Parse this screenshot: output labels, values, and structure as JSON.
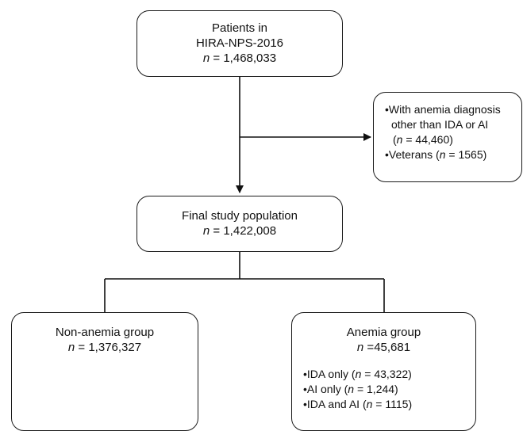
{
  "box_patients": {
    "line1": "Patients in",
    "line2": "HIRA-NPS-2016",
    "n_label": "n",
    "n_value": " = 1,468,033"
  },
  "box_excluded": {
    "item1_line1": "•With anemia diagnosis",
    "item1_line2": "other than IDA or AI",
    "item1_line3_open": "(",
    "item1_n_label": "n",
    "item1_line3_rest": " = 44,460)",
    "item2_prefix": "•Veterans (",
    "item2_n_label": "n",
    "item2_rest": " = 1565)"
  },
  "box_final": {
    "line1": "Final study population",
    "n_label": "n",
    "n_value": " = 1,422,008"
  },
  "box_nonanemia": {
    "line1": "Non-anemia group",
    "n_label": "n",
    "n_value": " = 1,376,327"
  },
  "box_anemia": {
    "line1": "Anemia group",
    "n_label": "n",
    "n_value": " =45,681",
    "items": [
      {
        "prefix": "•IDA only  (",
        "n_label": "n",
        "rest": " = 43,322)"
      },
      {
        "prefix": "•AI only (",
        "n_label": "n",
        "rest": " = 1,244)"
      },
      {
        "prefix": "•IDA and AI (",
        "n_label": "n",
        "rest": " = 1115)"
      }
    ]
  }
}
